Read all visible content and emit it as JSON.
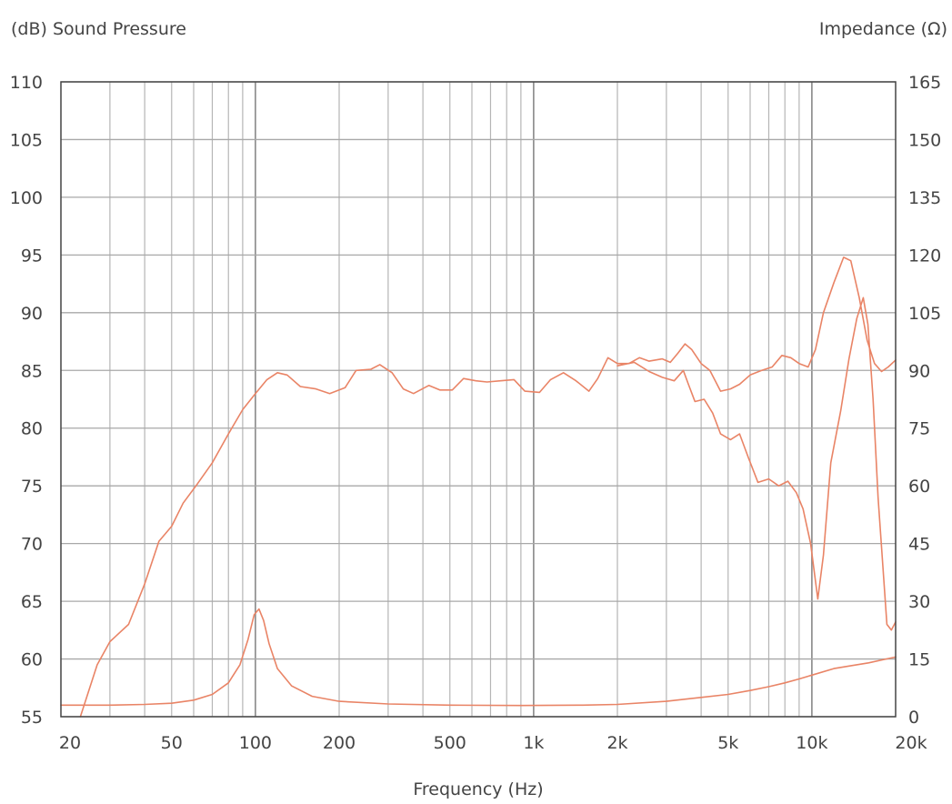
{
  "chart_data": {
    "type": "line",
    "y_label_left": "(dB) Sound Pressure",
    "y_label_right": "Impedance (Ω)",
    "xlabel": "Frequency (Hz)",
    "x_scale": "log",
    "xlim": [
      20,
      20000
    ],
    "ylim_left": [
      55,
      110
    ],
    "ylim_right": [
      0,
      165
    ],
    "grid": true,
    "x_ticks": [
      {
        "value": 20,
        "label": "20"
      },
      {
        "value": 50,
        "label": "50"
      },
      {
        "value": 100,
        "label": "100"
      },
      {
        "value": 200,
        "label": "200"
      },
      {
        "value": 500,
        "label": "500"
      },
      {
        "value": 1000,
        "label": "1k"
      },
      {
        "value": 2000,
        "label": "2k"
      },
      {
        "value": 5000,
        "label": "5k"
      },
      {
        "value": 10000,
        "label": "10k"
      },
      {
        "value": 20000,
        "label": "20k"
      }
    ],
    "y_ticks_left": [
      110,
      105,
      100,
      95,
      90,
      85,
      80,
      75,
      70,
      65,
      60,
      55
    ],
    "y_ticks_right": [
      165,
      150,
      135,
      120,
      105,
      90,
      75,
      60,
      45,
      30,
      15,
      0
    ],
    "series": [
      {
        "axis": "left",
        "color": "#e98466",
        "points": [
          [
            23.5,
            55
          ],
          [
            27,
            59.5
          ],
          [
            30,
            61.5
          ],
          [
            35,
            63
          ],
          [
            40,
            66.5
          ],
          [
            45,
            70.2
          ],
          [
            50,
            71.5
          ],
          [
            55,
            73.5
          ],
          [
            62,
            75.2
          ],
          [
            70,
            77
          ],
          [
            80,
            79.5
          ],
          [
            90,
            81.6
          ],
          [
            100,
            83
          ],
          [
            110,
            84.2
          ],
          [
            120,
            84.8
          ],
          [
            130,
            84.6
          ],
          [
            145,
            83.6
          ],
          [
            165,
            83.4
          ],
          [
            185,
            83
          ],
          [
            210,
            83.5
          ],
          [
            230,
            85
          ],
          [
            260,
            85.1
          ],
          [
            280,
            85.5
          ],
          [
            310,
            84.8
          ],
          [
            340,
            83.4
          ],
          [
            370,
            83
          ],
          [
            420,
            83.7
          ],
          [
            460,
            83.3
          ],
          [
            510,
            83.3
          ],
          [
            560,
            84.3
          ],
          [
            620,
            84.1
          ],
          [
            680,
            84
          ],
          [
            760,
            84.1
          ],
          [
            850,
            84.2
          ],
          [
            930,
            83.2
          ],
          [
            1050,
            83.1
          ],
          [
            1150,
            84.2
          ],
          [
            1280,
            84.8
          ],
          [
            1420,
            84.1
          ],
          [
            1580,
            83.2
          ],
          [
            1700,
            84.3
          ],
          [
            1850,
            86.1
          ],
          [
            2000,
            85.6
          ],
          [
            2200,
            85.6
          ],
          [
            2400,
            86.1
          ],
          [
            2600,
            85.8
          ],
          [
            2900,
            86
          ],
          [
            3100,
            85.7
          ],
          [
            3300,
            86.5
          ],
          [
            3500,
            87.3
          ],
          [
            3700,
            86.8
          ],
          [
            4000,
            85.6
          ],
          [
            4300,
            85
          ],
          [
            4700,
            83.2
          ],
          [
            5100,
            83.4
          ],
          [
            5500,
            83.8
          ],
          [
            6000,
            84.6
          ],
          [
            6600,
            85
          ],
          [
            7200,
            85.3
          ],
          [
            7800,
            86.3
          ],
          [
            8400,
            86.1
          ],
          [
            9000,
            85.6
          ],
          [
            9700,
            85.3
          ],
          [
            10300,
            86.8
          ],
          [
            11000,
            90
          ],
          [
            12000,
            92.6
          ],
          [
            13000,
            94.8
          ],
          [
            13800,
            94.5
          ],
          [
            14800,
            91.3
          ],
          [
            15800,
            87.6
          ],
          [
            16800,
            85.6
          ],
          [
            17800,
            84.9
          ],
          [
            18800,
            85.3
          ],
          [
            20000,
            85.9
          ]
        ]
      },
      {
        "axis": "left",
        "color": "#e98466",
        "points": [
          [
            2000,
            85.4
          ],
          [
            2300,
            85.7
          ],
          [
            2600,
            84.9
          ],
          [
            2900,
            84.4
          ],
          [
            3200,
            84.1
          ],
          [
            3450,
            85
          ],
          [
            3600,
            83.8
          ],
          [
            3800,
            82.3
          ],
          [
            4100,
            82.5
          ],
          [
            4400,
            81.3
          ],
          [
            4700,
            79.5
          ],
          [
            5100,
            79
          ],
          [
            5500,
            79.5
          ],
          [
            5900,
            77.5
          ],
          [
            6400,
            75.3
          ],
          [
            7000,
            75.6
          ],
          [
            7600,
            75
          ],
          [
            8200,
            75.4
          ],
          [
            8800,
            74.4
          ],
          [
            9300,
            73
          ],
          [
            9900,
            70
          ],
          [
            10500,
            65.2
          ],
          [
            11000,
            69
          ],
          [
            11700,
            77
          ],
          [
            12700,
            81.5
          ],
          [
            13600,
            86
          ],
          [
            14500,
            89.5
          ],
          [
            15300,
            91.3
          ],
          [
            15900,
            89
          ],
          [
            16600,
            82.5
          ],
          [
            17300,
            74
          ],
          [
            18000,
            68
          ],
          [
            18600,
            63
          ],
          [
            19300,
            62.5
          ],
          [
            20000,
            63.2
          ]
        ]
      },
      {
        "axis": "right",
        "color": "#e98466",
        "points": [
          [
            20,
            3
          ],
          [
            30,
            3
          ],
          [
            40,
            3.2
          ],
          [
            50,
            3.5
          ],
          [
            60,
            4.3
          ],
          [
            70,
            5.8
          ],
          [
            80,
            8.8
          ],
          [
            88,
            13.5
          ],
          [
            94,
            20
          ],
          [
            99,
            26.5
          ],
          [
            103,
            28
          ],
          [
            107,
            25
          ],
          [
            112,
            19
          ],
          [
            120,
            12.5
          ],
          [
            135,
            8
          ],
          [
            160,
            5.3
          ],
          [
            200,
            4
          ],
          [
            300,
            3.3
          ],
          [
            500,
            3
          ],
          [
            900,
            2.9
          ],
          [
            1500,
            3
          ],
          [
            2000,
            3.2
          ],
          [
            3000,
            4
          ],
          [
            4000,
            5
          ],
          [
            5000,
            5.8
          ],
          [
            6000,
            6.8
          ],
          [
            7000,
            7.8
          ],
          [
            8000,
            8.8
          ],
          [
            9000,
            9.8
          ],
          [
            10000,
            10.8
          ],
          [
            12000,
            12.5
          ],
          [
            14000,
            13.3
          ],
          [
            16000,
            14
          ],
          [
            18000,
            14.8
          ],
          [
            20000,
            15.5
          ]
        ]
      }
    ]
  }
}
